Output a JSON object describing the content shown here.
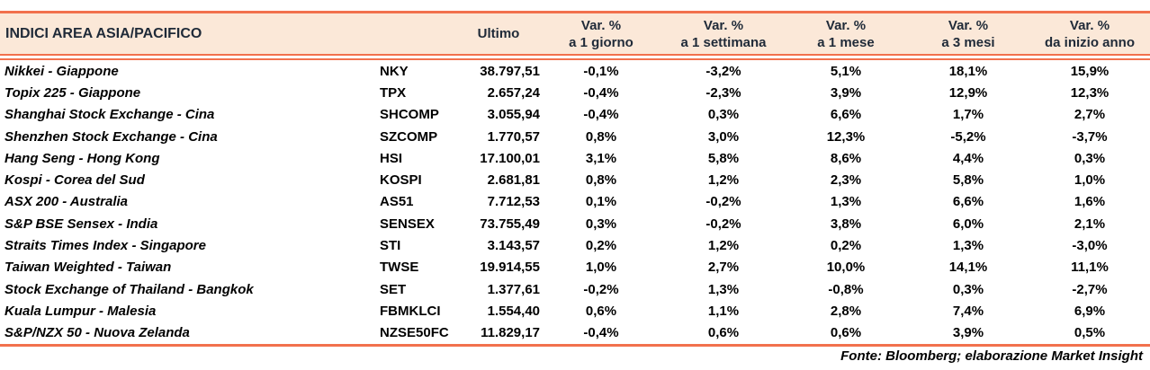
{
  "colors": {
    "accent": "#f2714d",
    "header_bg": "#fbe8d8",
    "title_text": "#1f2a38",
    "body_text": "#000000"
  },
  "header": {
    "title": "INDICI AREA ASIA/PACIFICO",
    "ultimo_label": "Ultimo",
    "var_columns": [
      {
        "line1": "Var. %",
        "line2": "a 1 giorno"
      },
      {
        "line1": "Var. %",
        "line2": "a 1 settimana"
      },
      {
        "line1": "Var. %",
        "line2": "a 1 mese"
      },
      {
        "line1": "Var. %",
        "line2": "a 3 mesi"
      },
      {
        "line1": "Var. %",
        "line2": "da inizio anno"
      }
    ]
  },
  "rows": [
    {
      "name": "Nikkei - Giappone",
      "ticker": "NKY",
      "last": "38.797,51",
      "d1": "-0,1%",
      "w1": "-3,2%",
      "m1": "5,1%",
      "m3": "18,1%",
      "ytd": "15,9%"
    },
    {
      "name": "Topix 225 - Giappone",
      "ticker": "TPX",
      "last": "2.657,24",
      "d1": "-0,4%",
      "w1": "-2,3%",
      "m1": "3,9%",
      "m3": "12,9%",
      "ytd": "12,3%"
    },
    {
      "name": "Shanghai Stock Exchange - Cina",
      "ticker": "SHCOMP",
      "last": "3.055,94",
      "d1": "-0,4%",
      "w1": "0,3%",
      "m1": "6,6%",
      "m3": "1,7%",
      "ytd": "2,7%"
    },
    {
      "name": "Shenzhen Stock Exchange - Cina",
      "ticker": "SZCOMP",
      "last": "1.770,57",
      "d1": "0,8%",
      "w1": "3,0%",
      "m1": "12,3%",
      "m3": "-5,2%",
      "ytd": "-3,7%"
    },
    {
      "name": "Hang Seng - Hong Kong",
      "ticker": "HSI",
      "last": "17.100,01",
      "d1": "3,1%",
      "w1": "5,8%",
      "m1": "8,6%",
      "m3": "4,4%",
      "ytd": "0,3%"
    },
    {
      "name": "Kospi - Corea del Sud",
      "ticker": "KOSPI",
      "last": "2.681,81",
      "d1": "0,8%",
      "w1": "1,2%",
      "m1": "2,3%",
      "m3": "5,8%",
      "ytd": "1,0%"
    },
    {
      "name": "ASX 200 - Australia",
      "ticker": "AS51",
      "last": "7.712,53",
      "d1": "0,1%",
      "w1": "-0,2%",
      "m1": "1,3%",
      "m3": "6,6%",
      "ytd": "1,6%"
    },
    {
      "name": "S&P BSE Sensex - India",
      "ticker": "SENSEX",
      "last": "73.755,49",
      "d1": "0,3%",
      "w1": "-0,2%",
      "m1": "3,8%",
      "m3": "6,0%",
      "ytd": "2,1%"
    },
    {
      "name": "Straits Times Index - Singapore",
      "ticker": "STI",
      "last": "3.143,57",
      "d1": "0,2%",
      "w1": "1,2%",
      "m1": "0,2%",
      "m3": "1,3%",
      "ytd": "-3,0%"
    },
    {
      "name": "Taiwan Weighted - Taiwan",
      "ticker": "TWSE",
      "last": "19.914,55",
      "d1": "1,0%",
      "w1": "2,7%",
      "m1": "10,0%",
      "m3": "14,1%",
      "ytd": "11,1%"
    },
    {
      "name": "Stock Exchange of Thailand - Bangkok",
      "ticker": "SET",
      "last": "1.377,61",
      "d1": "-0,2%",
      "w1": "1,3%",
      "m1": "-0,8%",
      "m3": "0,3%",
      "ytd": "-2,7%"
    },
    {
      "name": "Kuala Lumpur - Malesia",
      "ticker": "FBMKLCI",
      "last": "1.554,40",
      "d1": "0,6%",
      "w1": "1,1%",
      "m1": "2,8%",
      "m3": "7,4%",
      "ytd": "6,9%"
    },
    {
      "name": "S&P/NZX 50 - Nuova Zelanda",
      "ticker": "NZSE50FC",
      "last": "11.829,17",
      "d1": "-0,4%",
      "w1": "0,6%",
      "m1": "0,6%",
      "m3": "3,9%",
      "ytd": "0,5%"
    }
  ],
  "footer": {
    "source": "Fonte: Bloomberg; elaborazione Market Insight"
  }
}
